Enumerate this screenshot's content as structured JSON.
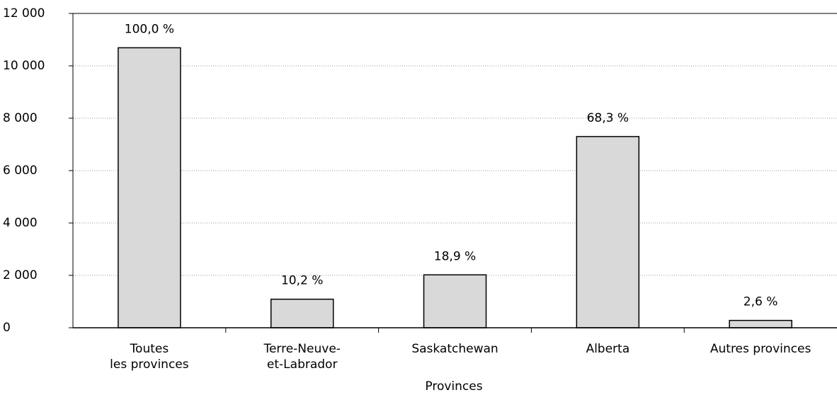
{
  "chart_data": {
    "type": "bar",
    "x_label": "Provinces",
    "categories": [
      "Toutes\nles provinces",
      "Terre-Neuve-\net-Labrador",
      "Saskatchewan",
      "Alberta",
      "Autres provinces"
    ],
    "values": [
      10690,
      1090,
      2020,
      7300,
      280
    ],
    "percent_values": [
      100.0,
      10.2,
      18.9,
      68.3,
      2.6
    ],
    "percent_labels": [
      "100,0 %",
      "10,2 %",
      "18,9 %",
      "68,3 %",
      "2,6 %"
    ],
    "color": "#d9d9d9",
    "ylim": [
      0,
      12000
    ],
    "yticks": [
      {
        "value": 0,
        "label": "0"
      },
      {
        "value": 2000,
        "label": "2 000"
      },
      {
        "value": 4000,
        "label": "4 000"
      },
      {
        "value": 6000,
        "label": "6 000"
      },
      {
        "value": 8000,
        "label": "8 000"
      },
      {
        "value": 10000,
        "label": "10 000"
      },
      {
        "value": 12000,
        "label": "12 000"
      }
    ],
    "grid": true
  }
}
